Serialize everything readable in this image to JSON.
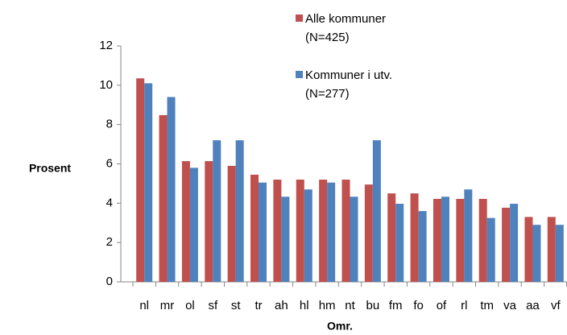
{
  "chart_data": {
    "type": "bar",
    "y_label": "Prosent",
    "x_label": "Omr.",
    "categories": [
      "nl",
      "mr",
      "ol",
      "sf",
      "st",
      "tr",
      "ah",
      "hl",
      "hm",
      "nt",
      "bu",
      "fm",
      "fo",
      "of",
      "rl",
      "tm",
      "va",
      "aa",
      "vf"
    ],
    "series": [
      {
        "name": "Alle kommuner (N=425)",
        "color": "#c0504d",
        "values": [
          10.35,
          8.48,
          6.14,
          6.14,
          5.9,
          5.45,
          5.2,
          5.2,
          5.2,
          5.2,
          4.95,
          4.5,
          4.5,
          4.22,
          4.22,
          4.22,
          3.77,
          3.3,
          3.3
        ]
      },
      {
        "name": "Kommuner i utv. (N=277)",
        "color": "#4f81bd",
        "values": [
          10.1,
          9.4,
          5.8,
          7.2,
          7.2,
          5.05,
          4.33,
          4.7,
          5.05,
          4.33,
          7.2,
          3.97,
          3.6,
          4.33,
          4.7,
          3.25,
          3.97,
          2.9,
          2.9
        ]
      }
    ],
    "ylim": [
      0,
      12
    ],
    "yticks": [
      0,
      2,
      4,
      6,
      8,
      10,
      12
    ],
    "grid": false
  }
}
